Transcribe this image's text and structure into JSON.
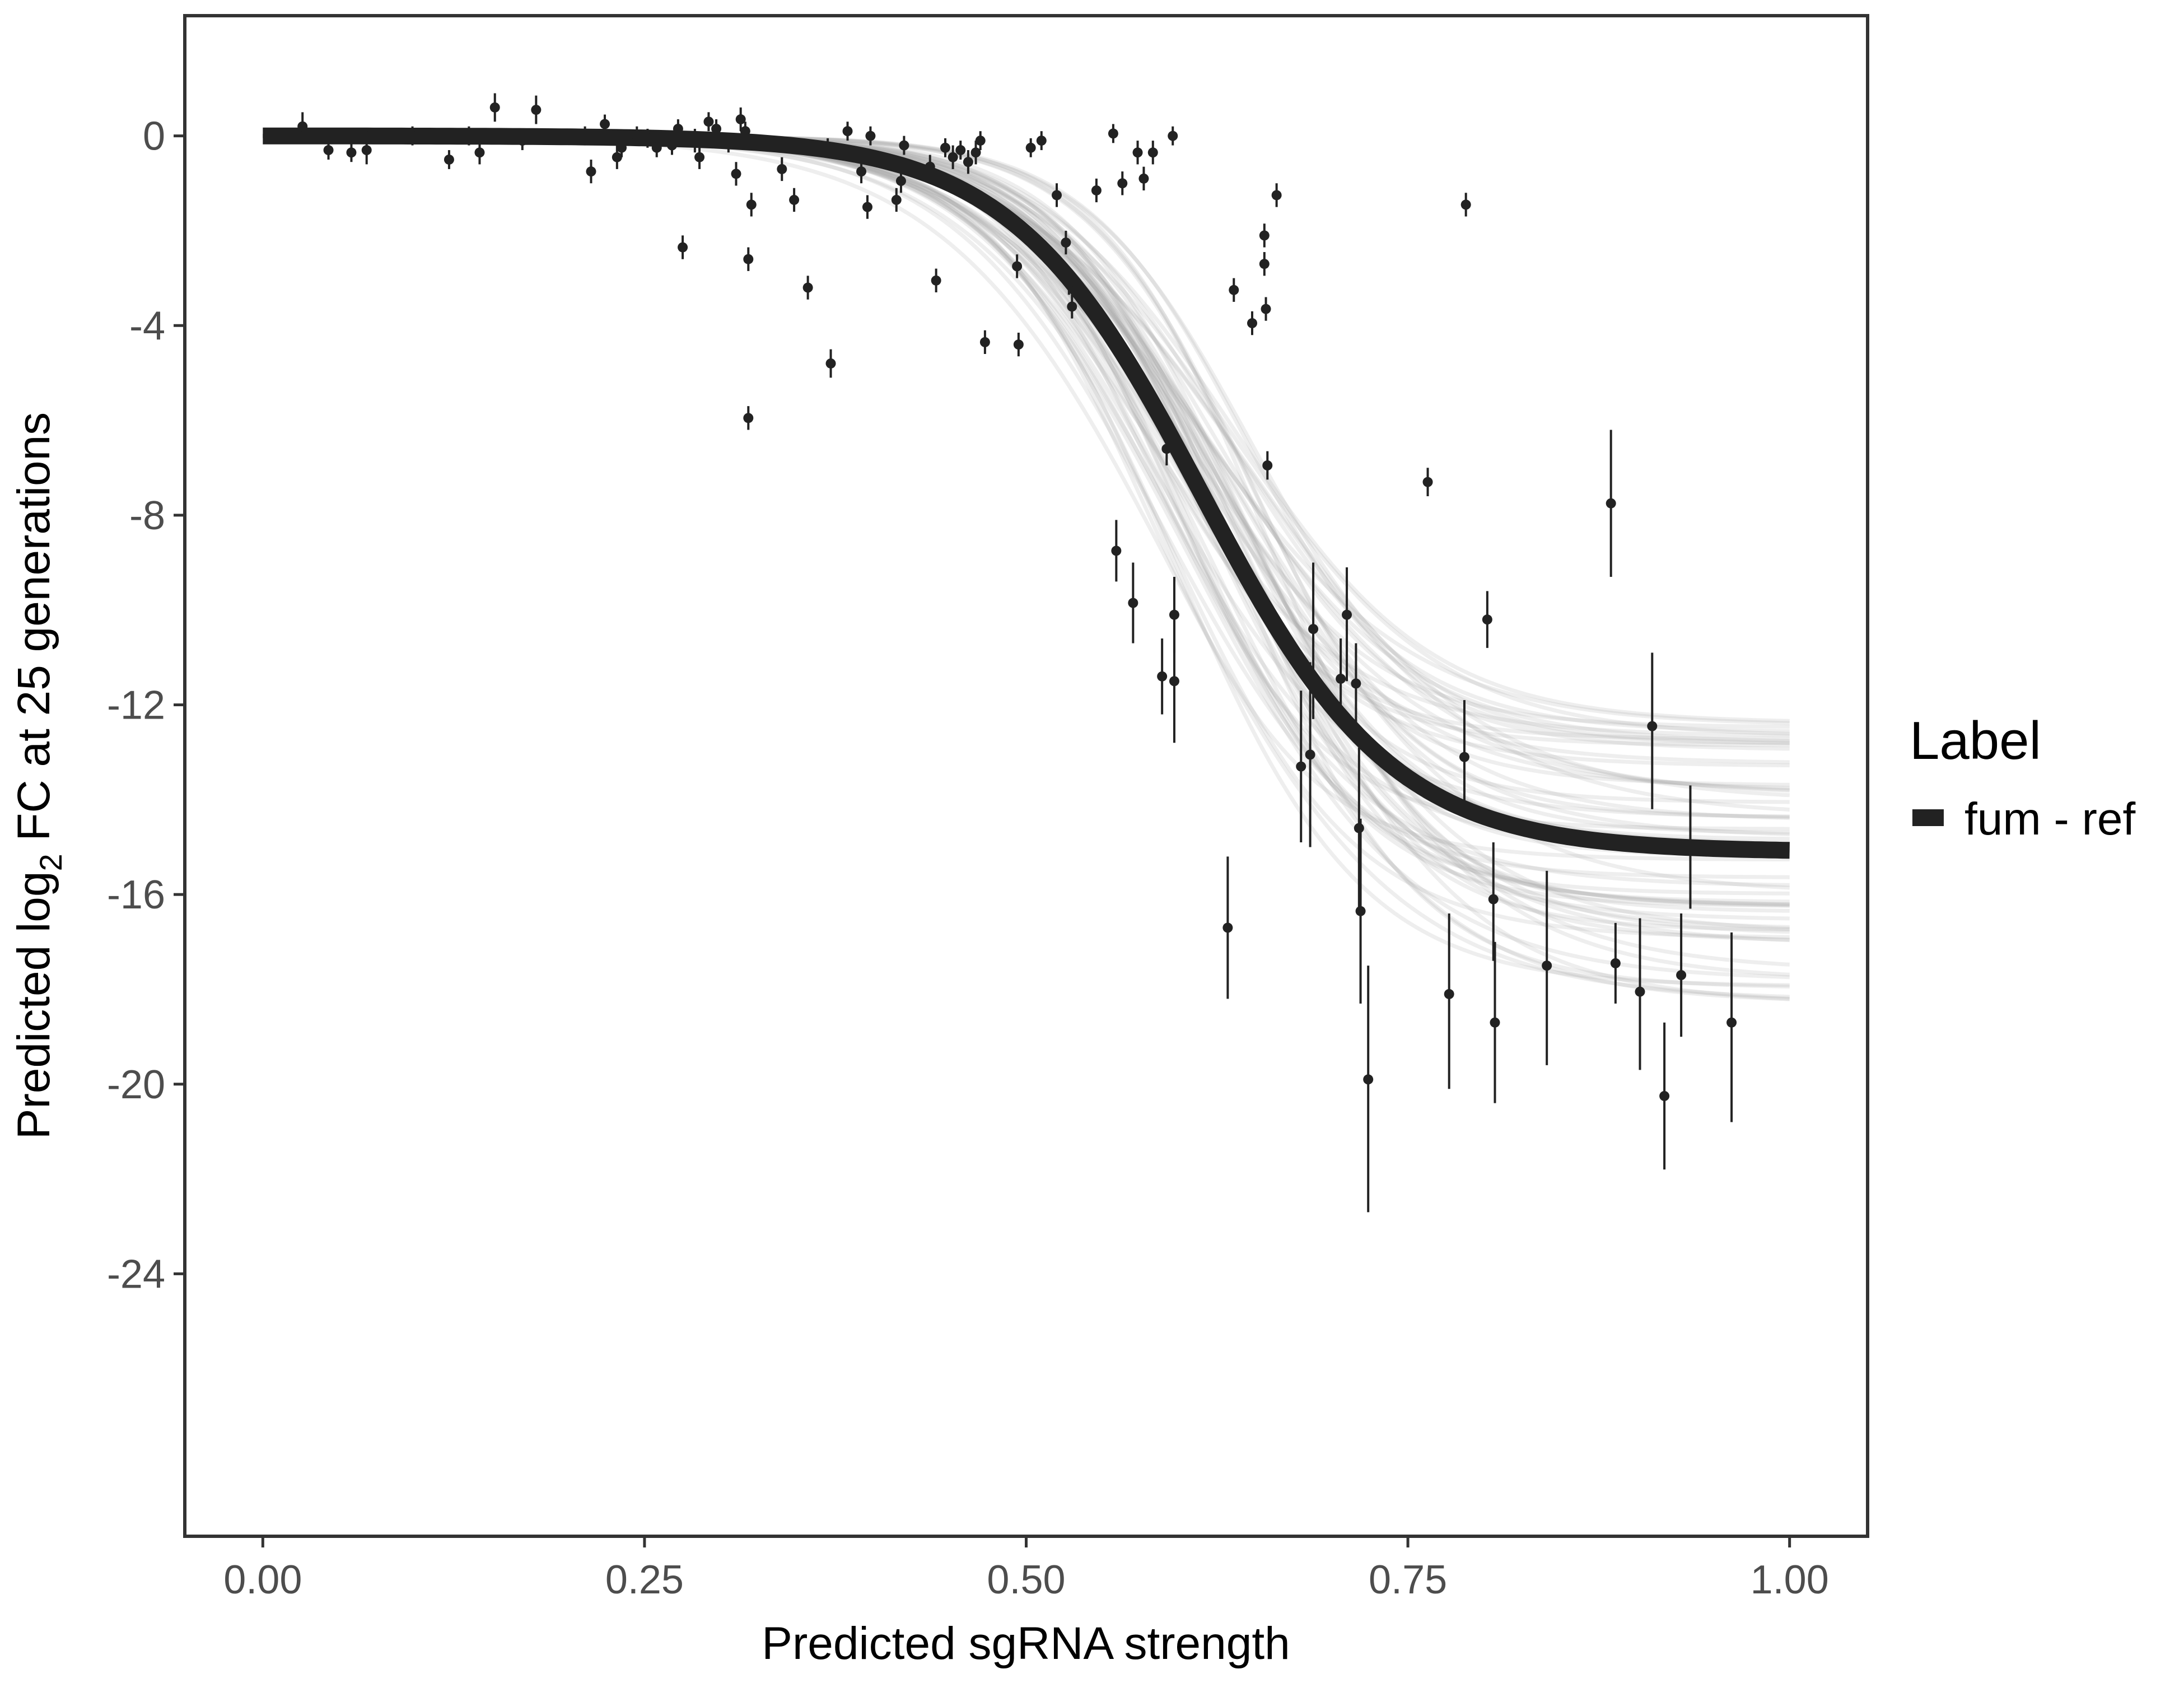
{
  "chart_data": {
    "type": "scatter",
    "xlabel": "Predicted sgRNA strength",
    "ylabel_parts": [
      "Predicted  log",
      "2",
      " FC at 25 generations"
    ],
    "xlim": [
      -0.05,
      1.05
    ],
    "ylim": [
      -29.5,
      2.5
    ],
    "x_ticks": [
      0,
      0.25,
      0.5,
      0.75,
      1
    ],
    "x_tick_labels": [
      "0.00",
      "0.25",
      "0.50",
      "0.75",
      "1.00"
    ],
    "y_ticks": [
      0,
      -4,
      -8,
      -12,
      -16,
      -20,
      -24
    ],
    "y_tick_labels": [
      "0",
      "-4",
      "-8",
      "-12",
      "-16",
      "-20",
      "-24"
    ],
    "grid": false,
    "legend": {
      "title": "Label",
      "position": "right",
      "items": [
        {
          "label": "fum - ref",
          "color": "#222222"
        }
      ]
    },
    "fit_curve": {
      "series_label": "fum - ref",
      "model": "logistic",
      "x_range": [
        0,
        1
      ],
      "upper": 0,
      "lower": -15.1,
      "midpoint": 0.615,
      "slope": 16,
      "color": "#222222"
    },
    "posterior_band": {
      "color": "#9e9e9e",
      "lower_range": [
        -18.3,
        -12.1
      ],
      "midpoint_range": [
        0.575,
        0.655
      ],
      "slope_range": [
        13,
        19
      ],
      "draws": 60
    },
    "points": [
      {
        "x": 0.026,
        "y": 0.2,
        "lo": -0.1,
        "hi": 0.5
      },
      {
        "x": 0.043,
        "y": -0.3,
        "lo": -0.5,
        "hi": -0.1
      },
      {
        "x": 0.058,
        "y": -0.35,
        "lo": -0.55,
        "hi": -0.15
      },
      {
        "x": 0.068,
        "y": -0.3,
        "lo": -0.6,
        "hi": 0.1
      },
      {
        "x": 0.098,
        "y": 0.0,
        "lo": -0.2,
        "hi": 0.2
      },
      {
        "x": 0.122,
        "y": -0.5,
        "lo": -0.7,
        "hi": -0.3
      },
      {
        "x": 0.135,
        "y": 0.0,
        "lo": -0.2,
        "hi": 0.2
      },
      {
        "x": 0.142,
        "y": -0.35,
        "lo": -0.6,
        "hi": -0.1
      },
      {
        "x": 0.152,
        "y": 0.6,
        "lo": 0.3,
        "hi": 0.9
      },
      {
        "x": 0.17,
        "y": -0.1,
        "lo": -0.3,
        "hi": 0.1
      },
      {
        "x": 0.179,
        "y": 0.55,
        "lo": 0.25,
        "hi": 0.85
      },
      {
        "x": 0.211,
        "y": 0.0,
        "lo": -0.2,
        "hi": 0.2
      },
      {
        "x": 0.215,
        "y": -0.75,
        "lo": -1.0,
        "hi": -0.5
      },
      {
        "x": 0.224,
        "y": 0.25,
        "lo": 0.05,
        "hi": 0.45
      },
      {
        "x": 0.232,
        "y": -0.45,
        "lo": -0.7,
        "hi": -0.2
      },
      {
        "x": 0.235,
        "y": -0.25,
        "lo": -0.45,
        "hi": -0.05
      },
      {
        "x": 0.245,
        "y": 0.0,
        "lo": -0.2,
        "hi": 0.2
      },
      {
        "x": 0.252,
        "y": -0.05,
        "lo": -0.25,
        "hi": 0.15
      },
      {
        "x": 0.258,
        "y": -0.25,
        "lo": -0.45,
        "hi": -0.05
      },
      {
        "x": 0.268,
        "y": -0.2,
        "lo": -0.4,
        "hi": 0.0
      },
      {
        "x": 0.272,
        "y": 0.15,
        "lo": -0.05,
        "hi": 0.35
      },
      {
        "x": 0.275,
        "y": -2.35,
        "lo": -2.6,
        "hi": -2.1
      },
      {
        "x": 0.283,
        "y": -0.1,
        "lo": -0.35,
        "hi": 0.15
      },
      {
        "x": 0.286,
        "y": -0.45,
        "lo": -0.7,
        "hi": -0.2
      },
      {
        "x": 0.292,
        "y": 0.3,
        "lo": 0.1,
        "hi": 0.5
      },
      {
        "x": 0.297,
        "y": 0.15,
        "lo": -0.05,
        "hi": 0.35
      },
      {
        "x": 0.305,
        "y": -0.15,
        "lo": -0.35,
        "hi": 0.05
      },
      {
        "x": 0.31,
        "y": -0.8,
        "lo": -1.05,
        "hi": -0.55
      },
      {
        "x": 0.313,
        "y": 0.35,
        "lo": 0.1,
        "hi": 0.6
      },
      {
        "x": 0.316,
        "y": 0.1,
        "lo": -0.1,
        "hi": 0.3
      },
      {
        "x": 0.318,
        "y": -2.6,
        "lo": -2.85,
        "hi": -2.35
      },
      {
        "x": 0.32,
        "y": -1.45,
        "lo": -1.7,
        "hi": -1.2
      },
      {
        "x": 0.318,
        "y": -5.95,
        "lo": -6.2,
        "hi": -5.7
      },
      {
        "x": 0.34,
        "y": -0.7,
        "lo": -0.95,
        "hi": -0.45
      },
      {
        "x": 0.348,
        "y": -1.35,
        "lo": -1.6,
        "hi": -1.1
      },
      {
        "x": 0.357,
        "y": -3.2,
        "lo": -3.45,
        "hi": -2.95
      },
      {
        "x": 0.37,
        "y": -0.25,
        "lo": -0.45,
        "hi": -0.05
      },
      {
        "x": 0.372,
        "y": -4.8,
        "lo": -5.1,
        "hi": -4.5
      },
      {
        "x": 0.383,
        "y": 0.1,
        "lo": -0.1,
        "hi": 0.3
      },
      {
        "x": 0.392,
        "y": -0.75,
        "lo": -1.0,
        "hi": -0.5
      },
      {
        "x": 0.396,
        "y": -1.5,
        "lo": -1.75,
        "hi": -1.25
      },
      {
        "x": 0.398,
        "y": 0.0,
        "lo": -0.2,
        "hi": 0.2
      },
      {
        "x": 0.415,
        "y": -1.35,
        "lo": -1.6,
        "hi": -1.1
      },
      {
        "x": 0.418,
        "y": -0.95,
        "lo": -1.2,
        "hi": -0.7
      },
      {
        "x": 0.42,
        "y": -0.2,
        "lo": -0.4,
        "hi": 0.0
      },
      {
        "x": 0.437,
        "y": -0.65,
        "lo": -0.9,
        "hi": -0.4
      },
      {
        "x": 0.441,
        "y": -3.05,
        "lo": -3.3,
        "hi": -2.8
      },
      {
        "x": 0.447,
        "y": -0.25,
        "lo": -0.45,
        "hi": -0.05
      },
      {
        "x": 0.452,
        "y": -0.45,
        "lo": -0.7,
        "hi": -0.2
      },
      {
        "x": 0.457,
        "y": -0.3,
        "lo": -0.5,
        "hi": -0.1
      },
      {
        "x": 0.462,
        "y": -0.55,
        "lo": -0.8,
        "hi": -0.3
      },
      {
        "x": 0.467,
        "y": -0.35,
        "lo": -0.6,
        "hi": -0.1
      },
      {
        "x": 0.47,
        "y": -0.1,
        "lo": -0.3,
        "hi": 0.1
      },
      {
        "x": 0.473,
        "y": -4.35,
        "lo": -4.6,
        "hi": -4.1
      },
      {
        "x": 0.494,
        "y": -2.75,
        "lo": -3.0,
        "hi": -2.5
      },
      {
        "x": 0.495,
        "y": -4.4,
        "lo": -4.65,
        "hi": -4.15
      },
      {
        "x": 0.503,
        "y": -0.25,
        "lo": -0.45,
        "hi": -0.05
      },
      {
        "x": 0.51,
        "y": -0.1,
        "lo": -0.3,
        "hi": 0.1
      },
      {
        "x": 0.52,
        "y": -1.25,
        "lo": -1.5,
        "hi": -1.0
      },
      {
        "x": 0.526,
        "y": -2.25,
        "lo": -2.5,
        "hi": -2.0
      },
      {
        "x": 0.528,
        "y": -3.1,
        "lo": -3.35,
        "hi": -2.85
      },
      {
        "x": 0.53,
        "y": -3.6,
        "lo": -3.85,
        "hi": -3.35
      },
      {
        "x": 0.546,
        "y": -1.15,
        "lo": -1.4,
        "hi": -0.9
      },
      {
        "x": 0.557,
        "y": 0.05,
        "lo": -0.15,
        "hi": 0.25
      },
      {
        "x": 0.559,
        "y": -8.75,
        "lo": -9.4,
        "hi": -8.1
      },
      {
        "x": 0.563,
        "y": -1.0,
        "lo": -1.25,
        "hi": -0.75
      },
      {
        "x": 0.57,
        "y": -9.85,
        "lo": -10.7,
        "hi": -9.0
      },
      {
        "x": 0.573,
        "y": -0.35,
        "lo": -0.6,
        "hi": -0.1
      },
      {
        "x": 0.577,
        "y": -0.9,
        "lo": -1.15,
        "hi": -0.65
      },
      {
        "x": 0.583,
        "y": -0.35,
        "lo": -0.6,
        "hi": -0.1
      },
      {
        "x": 0.589,
        "y": -11.4,
        "lo": -12.2,
        "hi": -10.6
      },
      {
        "x": 0.592,
        "y": -6.6,
        "lo": -6.95,
        "hi": -6.25
      },
      {
        "x": 0.596,
        "y": 0.0,
        "lo": -0.2,
        "hi": 0.2
      },
      {
        "x": 0.597,
        "y": -10.1,
        "lo": -10.9,
        "hi": -9.3
      },
      {
        "x": 0.597,
        "y": -11.5,
        "lo": -12.8,
        "hi": -10.2
      },
      {
        "x": 0.632,
        "y": -16.7,
        "lo": -18.2,
        "hi": -15.2
      },
      {
        "x": 0.636,
        "y": -3.25,
        "lo": -3.5,
        "hi": -3.0
      },
      {
        "x": 0.648,
        "y": -3.95,
        "lo": -4.2,
        "hi": -3.7
      },
      {
        "x": 0.656,
        "y": -2.1,
        "lo": -2.35,
        "hi": -1.85
      },
      {
        "x": 0.656,
        "y": -2.7,
        "lo": -2.95,
        "hi": -2.45
      },
      {
        "x": 0.657,
        "y": -3.65,
        "lo": -3.9,
        "hi": -3.4
      },
      {
        "x": 0.658,
        "y": -6.95,
        "lo": -7.25,
        "hi": -6.65
      },
      {
        "x": 0.664,
        "y": -1.25,
        "lo": -1.5,
        "hi": -1.0
      },
      {
        "x": 0.68,
        "y": -13.3,
        "lo": -14.9,
        "hi": -11.7
      },
      {
        "x": 0.686,
        "y": -13.05,
        "lo": -15.0,
        "hi": -11.1
      },
      {
        "x": 0.688,
        "y": -10.4,
        "lo": -12.3,
        "hi": -9.0
      },
      {
        "x": 0.706,
        "y": -11.45,
        "lo": -12.3,
        "hi": -10.6
      },
      {
        "x": 0.71,
        "y": -10.1,
        "lo": -11.5,
        "hi": -9.1
      },
      {
        "x": 0.716,
        "y": -11.55,
        "lo": -12.4,
        "hi": -10.7
      },
      {
        "x": 0.718,
        "y": -14.6,
        "lo": -16.3,
        "hi": -12.9
      },
      {
        "x": 0.719,
        "y": -16.35,
        "lo": -18.3,
        "hi": -14.4
      },
      {
        "x": 0.724,
        "y": -19.9,
        "lo": -22.7,
        "hi": -17.5
      },
      {
        "x": 0.763,
        "y": -7.3,
        "lo": -7.6,
        "hi": -7.0
      },
      {
        "x": 0.777,
        "y": -18.1,
        "lo": -20.1,
        "hi": -16.4
      },
      {
        "x": 0.787,
        "y": -13.1,
        "lo": -14.3,
        "hi": -11.9
      },
      {
        "x": 0.788,
        "y": -1.45,
        "lo": -1.7,
        "hi": -1.2
      },
      {
        "x": 0.802,
        "y": -10.2,
        "lo": -10.8,
        "hi": -9.6
      },
      {
        "x": 0.806,
        "y": -16.1,
        "lo": -17.4,
        "hi": -14.9
      },
      {
        "x": 0.807,
        "y": -18.7,
        "lo": -20.4,
        "hi": -17.0
      },
      {
        "x": 0.841,
        "y": -17.5,
        "lo": -19.6,
        "hi": -15.5
      },
      {
        "x": 0.883,
        "y": -7.75,
        "lo": -9.3,
        "hi": -6.2
      },
      {
        "x": 0.886,
        "y": -17.45,
        "lo": -18.3,
        "hi": -16.6
      },
      {
        "x": 0.902,
        "y": -18.05,
        "lo": -19.7,
        "hi": -16.5
      },
      {
        "x": 0.91,
        "y": -12.45,
        "lo": -14.2,
        "hi": -10.9
      },
      {
        "x": 0.918,
        "y": -20.25,
        "lo": -21.8,
        "hi": -18.7
      },
      {
        "x": 0.929,
        "y": -17.7,
        "lo": -19.0,
        "hi": -16.4
      },
      {
        "x": 0.935,
        "y": -15.0,
        "lo": -16.3,
        "hi": -13.7
      },
      {
        "x": 0.962,
        "y": -18.7,
        "lo": -20.8,
        "hi": -16.8
      }
    ]
  }
}
